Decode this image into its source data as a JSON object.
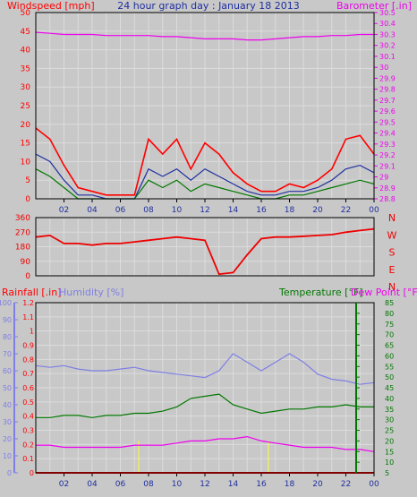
{
  "colors": {
    "background": "#c8c8c8",
    "frame": "#000000",
    "wind": "#ff0000",
    "wind_avg": "#1f2fa0",
    "gust": "#007700",
    "baro": "#ee00ee",
    "direction": "#ee0000",
    "humidity": "#7f7fe6",
    "temperature": "#007700",
    "dewpoint": "#ee00ee",
    "rainfall": "#ff0000",
    "rain_marker": "#ffff33"
  },
  "chart_data": [
    {
      "panel": "wind-baro",
      "type": "line",
      "title": "24 hour graph day : January 18 2013",
      "left_axis_label": "Windspeed [mph]",
      "right_axis_label": "Barometer [.in]",
      "x_ticks": [
        "02",
        "04",
        "06",
        "08",
        "10",
        "12",
        "14",
        "16",
        "18",
        "20",
        "22",
        "00"
      ],
      "y_left": {
        "min": 0,
        "max": 50,
        "ticks": [
          "0",
          "5",
          "10",
          "15",
          "20",
          "25",
          "30",
          "35",
          "40",
          "45",
          "50"
        ]
      },
      "y_right": {
        "min": 28.8,
        "max": 30.5,
        "ticks": [
          "28.8",
          "28.9",
          "29",
          "29.1",
          "29.2",
          "29.3",
          "29.4",
          "29.5",
          "29.6",
          "29.7",
          "29.8",
          "29.9",
          "30",
          "30.1",
          "30.2",
          "30.3",
          "30.4",
          "30.5"
        ]
      },
      "x": [
        0,
        1,
        2,
        3,
        4,
        5,
        6,
        7,
        8,
        9,
        10,
        11,
        12,
        13,
        14,
        15,
        16,
        17,
        18,
        19,
        20,
        21,
        22,
        23,
        24
      ],
      "series": [
        {
          "key": "wind",
          "values": [
            19,
            16,
            9,
            3,
            2,
            1,
            1,
            1,
            16,
            12,
            16,
            8,
            15,
            12,
            7,
            4,
            2,
            2,
            4,
            3,
            5,
            8,
            16,
            17,
            12
          ]
        },
        {
          "key": "wind_avg",
          "values": [
            12,
            10,
            5,
            1,
            1,
            0,
            0,
            0,
            8,
            6,
            8,
            5,
            8,
            6,
            4,
            2,
            1,
            1,
            2,
            2,
            3,
            5,
            8,
            9,
            7
          ]
        },
        {
          "key": "gust",
          "values": [
            8,
            6,
            3,
            0,
            0,
            0,
            0,
            0,
            5,
            3,
            5,
            2,
            4,
            3,
            2,
            1,
            0,
            0,
            1,
            1,
            2,
            3,
            4,
            5,
            4
          ]
        },
        {
          "key": "baro",
          "axis": "right",
          "values": [
            30.32,
            30.31,
            30.3,
            30.3,
            30.3,
            30.29,
            30.29,
            30.29,
            30.29,
            30.28,
            30.28,
            30.27,
            30.26,
            30.26,
            30.26,
            30.25,
            30.25,
            30.26,
            30.27,
            30.28,
            30.28,
            30.29,
            30.29,
            30.3,
            30.3
          ]
        }
      ]
    },
    {
      "panel": "direction",
      "type": "line",
      "right_labels": [
        "N",
        "W",
        "S",
        "E",
        "N"
      ],
      "y": {
        "min": 0,
        "max": 360,
        "ticks": [
          "0",
          "90",
          "180",
          "270",
          "360"
        ]
      },
      "x": [
        0,
        1,
        2,
        3,
        4,
        5,
        6,
        7,
        8,
        9,
        10,
        11,
        12,
        13,
        14,
        15,
        16,
        17,
        18,
        19,
        20,
        21,
        22,
        23,
        24
      ],
      "values": [
        240,
        250,
        200,
        200,
        190,
        200,
        200,
        210,
        220,
        230,
        240,
        230,
        220,
        10,
        20,
        130,
        230,
        240,
        240,
        245,
        250,
        255,
        270,
        280,
        290
      ]
    },
    {
      "panel": "temp-hum-rain",
      "type": "line",
      "rain_axis_label": "Rainfall [.in]",
      "humidity_axis_label": "Humidity [%]",
      "temperature_axis_label": "Temperature [°F]",
      "dewpoint_axis_label": "Dew Point [°F]",
      "y_rain": {
        "min": 0,
        "max": 1.2,
        "ticks": [
          "0",
          "0.1",
          "0.2",
          "0.3",
          "0.4",
          "0.5",
          "0.6",
          "0.7",
          "0.8",
          "0.9",
          "1",
          "1.1",
          "1.2"
        ]
      },
      "y_humidity": {
        "min": 0,
        "max": 100,
        "ticks": [
          "0",
          "10",
          "20",
          "30",
          "40",
          "50",
          "60",
          "70",
          "80",
          "90",
          "100"
        ]
      },
      "y_temp": {
        "min": 5,
        "max": 85,
        "ticks": [
          "5",
          "10",
          "15",
          "20",
          "25",
          "30",
          "35",
          "40",
          "45",
          "50",
          "55",
          "60",
          "65",
          "70",
          "75",
          "80",
          "85"
        ]
      },
      "x_ticks": [
        "02",
        "04",
        "06",
        "08",
        "10",
        "12",
        "14",
        "16",
        "18",
        "20",
        "22",
        "00"
      ],
      "x": [
        0,
        1,
        2,
        3,
        4,
        5,
        6,
        7,
        8,
        9,
        10,
        11,
        12,
        13,
        14,
        15,
        16,
        17,
        18,
        19,
        20,
        21,
        22,
        23,
        24
      ],
      "series": [
        {
          "key": "humidity",
          "axis": "humidity",
          "values": [
            63,
            62,
            63,
            61,
            60,
            60,
            61,
            62,
            60,
            59,
            58,
            57,
            56,
            60,
            70,
            65,
            60,
            65,
            70,
            65,
            58,
            55,
            54,
            52,
            53
          ]
        },
        {
          "key": "temperature",
          "axis": "temp",
          "values": [
            31,
            31,
            32,
            32,
            31,
            32,
            32,
            33,
            33,
            34,
            36,
            40,
            41,
            42,
            37,
            35,
            33,
            34,
            35,
            35,
            36,
            36,
            37,
            36,
            36
          ]
        },
        {
          "key": "dewpoint",
          "axis": "temp",
          "values": [
            18,
            18,
            17,
            17,
            17,
            17,
            17,
            18,
            18,
            18,
            19,
            20,
            20,
            21,
            21,
            22,
            20,
            19,
            18,
            17,
            17,
            17,
            16,
            16,
            15
          ]
        },
        {
          "key": "rainfall",
          "axis": "rain",
          "values": [
            0,
            0,
            0,
            0,
            0,
            0,
            0,
            0,
            0,
            0,
            0,
            0,
            0,
            0,
            0,
            0,
            0,
            0,
            0,
            0,
            0,
            0,
            0,
            0,
            0
          ]
        }
      ]
    }
  ]
}
